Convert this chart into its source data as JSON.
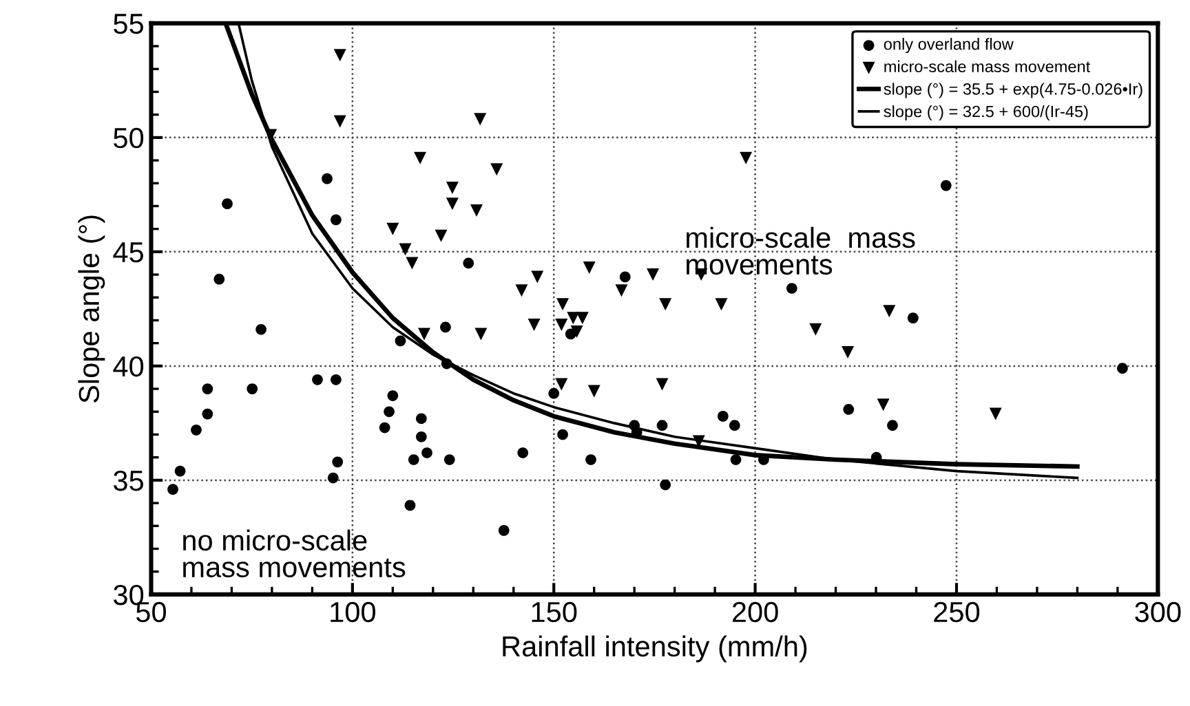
{
  "chart_data": {
    "type": "scatter",
    "xlabel": "Rainfall intensity (mm/h)",
    "ylabel": "Slope angle (°)",
    "xlim": [
      50,
      300
    ],
    "ylim": [
      30,
      55
    ],
    "xticks": [
      50,
      100,
      150,
      200,
      250,
      300
    ],
    "yticks": [
      30,
      35,
      40,
      45,
      50,
      55
    ],
    "grid": true,
    "legend": "top right",
    "annotations": [
      "micro-scale  mass\nmovements",
      "no micro-scale\nmass movements"
    ],
    "series": [
      {
        "name": "only overland flow",
        "marker": "circle",
        "color": "#000000",
        "x": [
          55.4,
          57.2,
          61.2,
          64.0,
          64.0,
          66.9,
          68.9,
          75.1,
          77.3,
          91.3,
          93.7,
          95.2,
          95.9,
          95.9,
          96.3,
          108.0,
          109.1,
          110.0,
          111.9,
          114.3,
          115.2,
          117.1,
          117.1,
          118.5,
          123.1,
          123.4,
          124.1,
          128.8,
          137.6,
          142.3,
          150.0,
          152.2,
          154.2,
          159.2,
          167.7,
          170.0,
          170.6,
          176.9,
          177.7,
          192.0,
          194.9,
          195.2,
          202.1,
          209.1,
          247.4,
          239.2,
          223.2,
          234.1,
          230.1,
          291.2
        ],
        "values": [
          34.6,
          35.4,
          37.2,
          37.9,
          39.0,
          43.8,
          47.1,
          39.0,
          41.6,
          39.4,
          48.2,
          35.1,
          39.4,
          46.4,
          35.8,
          37.3,
          38.0,
          38.7,
          41.1,
          33.9,
          35.9,
          37.7,
          36.9,
          36.2,
          41.7,
          40.1,
          35.9,
          44.5,
          32.8,
          36.2,
          38.8,
          37.0,
          41.4,
          35.9,
          43.9,
          37.4,
          37.1,
          37.4,
          34.8,
          37.8,
          37.4,
          35.9,
          35.9,
          43.4,
          47.9,
          42.1,
          38.1,
          37.4,
          36.0,
          39.9
        ]
      },
      {
        "name": "micro-scale mass movement",
        "marker": "triangle",
        "color": "#000000",
        "x": [
          96.9,
          96.9,
          79.7,
          116.8,
          124.8,
          124.8,
          110.0,
          122.0,
          113.1,
          114.8,
          117.8,
          131.7,
          135.8,
          130.8,
          142.0,
          145.9,
          145.1,
          131.9,
          152.2,
          151.9,
          154.8,
          157.1,
          155.7,
          158.8,
          166.8,
          174.6,
          177.7,
          186.6,
          191.6,
          197.7,
          151.9,
          160.0,
          176.9,
          186.0,
          233.3,
          215.0,
          223.0,
          231.8,
          259.7
        ],
        "values": [
          53.6,
          50.7,
          50.1,
          49.1,
          47.8,
          47.1,
          46.0,
          45.7,
          45.1,
          44.5,
          41.4,
          50.8,
          48.6,
          46.8,
          43.3,
          43.9,
          41.8,
          41.4,
          42.7,
          41.8,
          42.1,
          42.1,
          41.5,
          44.3,
          43.3,
          44.0,
          42.7,
          44.0,
          42.7,
          49.1,
          39.2,
          38.9,
          39.2,
          36.7,
          42.4,
          41.6,
          40.6,
          38.3,
          37.9
        ]
      },
      {
        "name": "slope (°) = 35.5 + exp(4.75-0.026•Ir)",
        "type": "line",
        "line_style": "solid",
        "color": "#000000",
        "x": [
          68.5,
          75,
          80,
          90,
          100,
          110,
          120,
          130,
          140,
          150,
          165,
          180,
          200,
          220,
          250,
          280
        ],
        "values": [
          55.0,
          51.9,
          49.9,
          46.6,
          44.1,
          42.1,
          40.6,
          39.4,
          38.5,
          37.8,
          37.1,
          36.6,
          36.1,
          35.9,
          35.7,
          35.6
        ]
      },
      {
        "name": "slope (°) = 32.5 + 600/(Ir-45)",
        "type": "line",
        "line_style": "solid",
        "color": "#000000",
        "x": [
          71.7,
          75,
          80,
          90,
          100,
          110,
          120,
          130,
          140,
          150,
          165,
          180,
          200,
          220,
          250,
          280
        ],
        "values": [
          55.0,
          52.5,
          49.6,
          45.8,
          43.4,
          41.7,
          40.5,
          39.6,
          38.8,
          38.2,
          37.5,
          36.9,
          36.4,
          35.9,
          35.4,
          35.1
        ]
      }
    ]
  }
}
